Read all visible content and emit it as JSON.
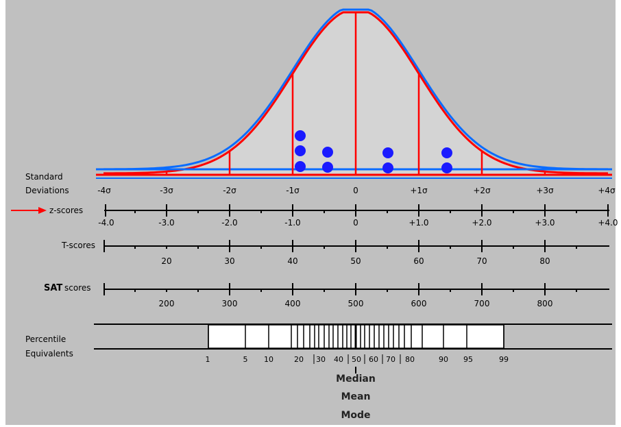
{
  "diagram": {
    "row_labels": {
      "standard": "Standard",
      "deviations": "Deviations",
      "zscores": "z-scores",
      "tscores": "T-scores",
      "sat_bold": "SAT",
      "sat_rest": "scores",
      "percentile": "Percentile",
      "equivalents": "Equivalents"
    },
    "sigma_labels": [
      "-4σ",
      "-3σ",
      "-2σ",
      "-1σ",
      "0",
      "+1σ",
      "+2σ",
      "+3σ",
      "+4σ"
    ],
    "z_labels": [
      "-4.0",
      "-3.0",
      "-2.0",
      "-1.0",
      "0",
      "+1.0",
      "+2.0",
      "+3.0",
      "+4.0"
    ],
    "t_labels": [
      "20",
      "30",
      "40",
      "50",
      "60",
      "70",
      "80"
    ],
    "sat_labels": [
      "200",
      "300",
      "400",
      "500",
      "600",
      "700",
      "800"
    ],
    "percentile_labels": [
      "1",
      "5",
      "10",
      "20",
      "30",
      "40",
      "50",
      "60",
      "70",
      "80",
      "90",
      "95",
      "99"
    ],
    "center_labels": [
      "Median",
      "Mean",
      "Mode"
    ],
    "colors": {
      "background": "#c0c0c0",
      "curve_red": "#ff0000",
      "curve_blue": "#0a6cff",
      "dots": "#1a1aff",
      "arrow": "#ff0000"
    }
  }
}
